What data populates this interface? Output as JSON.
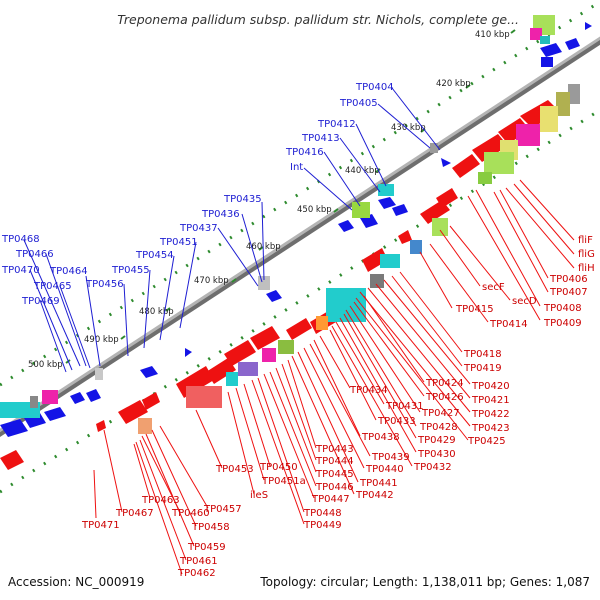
{
  "title": "Treponema pallidum subsp. pallidum str. Nichols, complete ge...",
  "footer": {
    "accession": "Accession: NC_000919",
    "summary": "Topology: circular; Length: 1,138,011 bp; Genes: 1,087"
  },
  "ticks": [
    "410 kbp",
    "420 kbp",
    "430 kbp",
    "440 kbp",
    "450 kbp",
    "460 kbp",
    "470 kbp",
    "480 kbp",
    "490 kbp",
    "500 kbp"
  ],
  "colors": {
    "forward_genes": "#1414e6",
    "reverse_genes": "#ee1111",
    "backbone": "#8c8c8c",
    "tick_dots": "#2e8b2e"
  },
  "labels_forward": [
    "TP0404",
    "TP0405",
    "TP0412",
    "TP0413",
    "TP0416",
    "Int",
    "TP0435",
    "TP0436",
    "TP0437",
    "TP0451",
    "TP0454",
    "TP0455",
    "TP0456",
    "TP0464",
    "TP0468",
    "TP0466",
    "TP0470",
    "TP0465",
    "TP0469"
  ],
  "labels_reverse": [
    "fliF",
    "fliG",
    "fliH",
    "TP0406",
    "TP0407",
    "TP0408",
    "TP0409",
    "secF",
    "secD",
    "TP0415",
    "TP0414",
    "TP0418",
    "TP0419",
    "TP0420",
    "TP0421",
    "TP0422",
    "TP0423",
    "TP0424",
    "TP0425",
    "TP0426",
    "TP0427",
    "TP0428",
    "TP0429",
    "TP0430",
    "TP0431",
    "TP0432",
    "TP0433",
    "TP0434",
    "TP0438",
    "TP0439",
    "TP0440",
    "TP0441",
    "TP0442",
    "TP0443",
    "TP0444",
    "TP0445",
    "TP0446",
    "TP0447",
    "TP0448",
    "TP0449",
    "TP0450",
    "TP0451a",
    "ileS",
    "TP0453",
    "TP0457",
    "TP0458",
    "TP0459",
    "TP0460",
    "TP0461",
    "TP0462",
    "TP0463",
    "TP0467",
    "TP0471"
  ]
}
